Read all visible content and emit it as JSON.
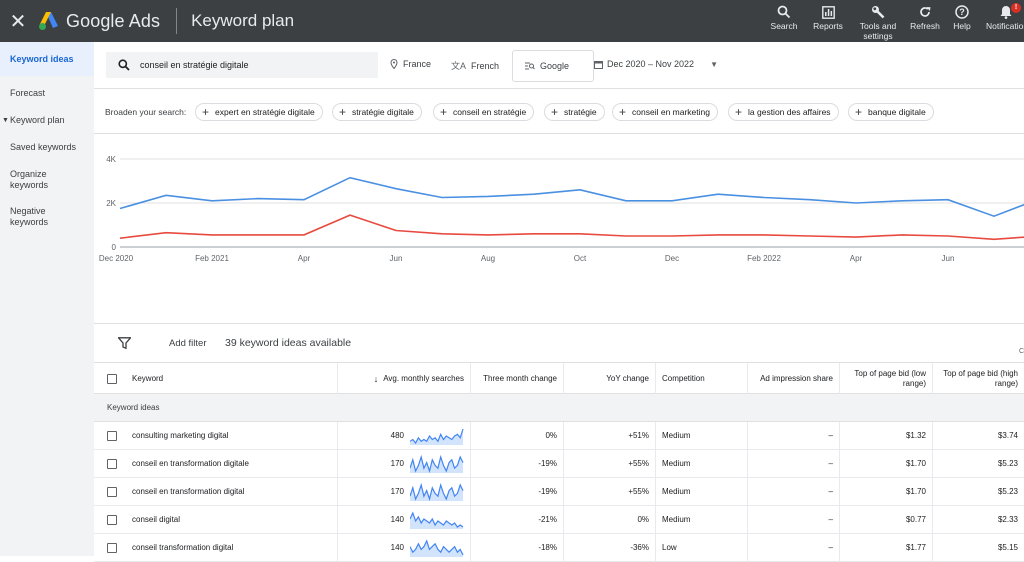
{
  "topbar": {
    "close_icon": "close-icon",
    "app_name": "Google Ads",
    "page_title": "Keyword plan",
    "actions": [
      {
        "label": "Search",
        "icon": "search-icon"
      },
      {
        "label": "Reports",
        "icon": "reports-icon"
      },
      {
        "label": "Tools and settings",
        "icon": "wrench-icon"
      },
      {
        "label": "Refresh",
        "icon": "refresh-icon"
      },
      {
        "label": "Help",
        "icon": "help-icon"
      },
      {
        "label": "Notifications",
        "icon": "bell-icon",
        "badge": "!"
      }
    ]
  },
  "sidebar": {
    "items": [
      {
        "label": "Keyword ideas",
        "active": true
      },
      {
        "label": "Forecast"
      },
      {
        "label": "Keyword plan",
        "expandable": true
      },
      {
        "label": "Saved keywords"
      },
      {
        "label": "Organize keywords"
      },
      {
        "label": "Negative keywords"
      }
    ]
  },
  "search": {
    "query": "conseil en stratégie digitale",
    "location": "France",
    "language": "French",
    "network": "Google",
    "date_range": "Dec 2020 – Nov 2022"
  },
  "broaden": {
    "label": "Broaden your search:",
    "chips": [
      "expert en stratégie digitale",
      "stratégie digitale",
      "conseil en stratégie",
      "stratégie",
      "conseil en marketing",
      "la gestion des affaires",
      "banque digitale"
    ]
  },
  "chart_data": {
    "type": "line",
    "y_ticks": [
      "4K",
      "2K",
      "0"
    ],
    "ylim": [
      0,
      5000
    ],
    "x_tick_labels": [
      "Dec 2020",
      "Feb 2021",
      "Apr",
      "Jun",
      "Aug",
      "Oct",
      "Dec",
      "Feb 2022",
      "Apr",
      "Jun"
    ],
    "x": [
      "Dec 2020",
      "Jan 2021",
      "Feb 2021",
      "Mar 2021",
      "Apr 2021",
      "May 2021",
      "Jun 2021",
      "Jul 2021",
      "Aug 2021",
      "Sep 2021",
      "Oct 2021",
      "Nov 2021",
      "Dec 2021",
      "Jan 2022",
      "Feb 2022",
      "Mar 2022",
      "Apr 2022",
      "May 2022",
      "Jun 2022",
      "Jul 2022",
      "Aug 2022"
    ],
    "series": [
      {
        "color": "#4a90e2",
        "values": [
          1750,
          2350,
          2100,
          2200,
          2150,
          3150,
          2650,
          2250,
          2300,
          2400,
          2600,
          2100,
          2100,
          2400,
          2250,
          2150,
          2000,
          2100,
          2150,
          1400,
          2200
        ]
      },
      {
        "color": "#e84a3f",
        "values": [
          400,
          650,
          550,
          550,
          550,
          1450,
          750,
          600,
          550,
          600,
          600,
          500,
          500,
          550,
          550,
          500,
          450,
          550,
          500,
          350,
          500
        ]
      }
    ],
    "grid": true
  },
  "table": {
    "add_filter": "Add filter",
    "ideas_count": "39 keyword ideas available",
    "columns": {
      "keyword": "Keyword",
      "avg": "Avg. monthly searches",
      "three_month": "Three month change",
      "yoy": "YoY change",
      "competition": "Competition",
      "impression": "Ad impression share",
      "low_bid": "Top of page bid (low range)",
      "high_bid": "Top of page bid (high range)"
    },
    "group_label": "Keyword ideas",
    "rows": [
      {
        "keyword": "consulting marketing digital",
        "avg": "480",
        "three_month": "0%",
        "yoy": "+51%",
        "competition": "Medium",
        "impression": "–",
        "low_bid": "$1.32",
        "high_bid": "$3.74",
        "trend": [
          5,
          6,
          4,
          7,
          5,
          6,
          5,
          8,
          6,
          7,
          5,
          9,
          6,
          8,
          7,
          6,
          8,
          9,
          7,
          12
        ]
      },
      {
        "keyword": "conseil en transformation digitale",
        "avg": "170",
        "three_month": "-19%",
        "yoy": "+55%",
        "competition": "Medium",
        "impression": "–",
        "low_bid": "$1.70",
        "high_bid": "$5.23",
        "trend": [
          6,
          9,
          5,
          7,
          10,
          6,
          8,
          5,
          9,
          7,
          6,
          10,
          7,
          5,
          8,
          9,
          6,
          7,
          10,
          8
        ]
      },
      {
        "keyword": "conseil en transformation digital",
        "avg": "170",
        "three_month": "-19%",
        "yoy": "+55%",
        "competition": "Medium",
        "impression": "–",
        "low_bid": "$1.70",
        "high_bid": "$5.23",
        "trend": [
          6,
          9,
          5,
          7,
          10,
          6,
          8,
          5,
          9,
          7,
          6,
          10,
          7,
          5,
          8,
          9,
          6,
          7,
          10,
          8
        ]
      },
      {
        "keyword": "conseil digital",
        "avg": "140",
        "three_month": "-21%",
        "yoy": "0%",
        "competition": "Medium",
        "impression": "–",
        "low_bid": "$0.77",
        "high_bid": "$2.33",
        "trend": [
          7,
          10,
          6,
          8,
          5,
          7,
          6,
          5,
          7,
          4,
          6,
          5,
          4,
          6,
          5,
          4,
          5,
          3,
          4,
          3
        ]
      },
      {
        "keyword": "conseil transformation digital",
        "avg": "140",
        "three_month": "-18%",
        "yoy": "-36%",
        "competition": "Low",
        "impression": "–",
        "low_bid": "$1.77",
        "high_bid": "$5.15",
        "trend": [
          6,
          4,
          5,
          7,
          5,
          6,
          8,
          5,
          6,
          7,
          5,
          4,
          6,
          5,
          4,
          5,
          6,
          4,
          5,
          3
        ]
      }
    ]
  }
}
